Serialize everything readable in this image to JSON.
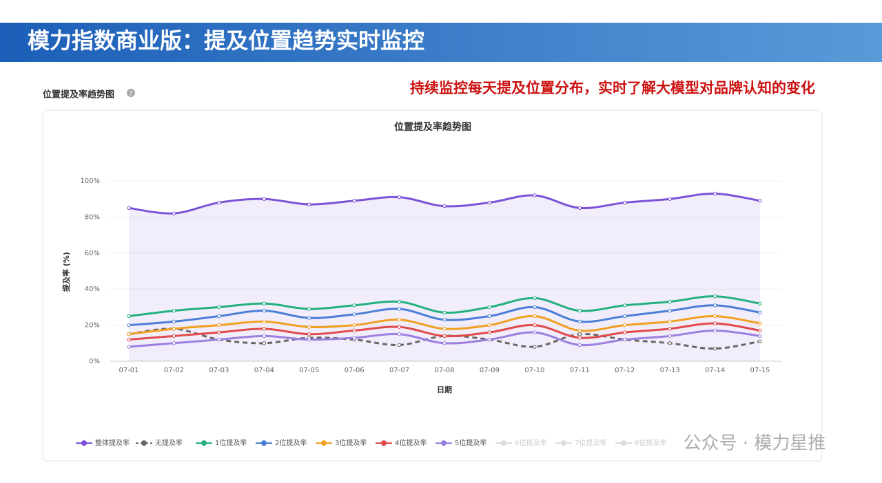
{
  "header": {
    "title": "模力指数商业版：提及位置趋势实时监控",
    "section_label": "位置提及率趋势图",
    "note": "持续监控每天提及位置分布，实时了解大模型对品牌认知的变化",
    "watermark": "公众号 · 模力星推"
  },
  "chart_data": {
    "type": "line",
    "title": "位置提及率趋势图",
    "x_label": "日期",
    "y_label": "提及率 (%)",
    "categories": [
      "07-01",
      "07-02",
      "07-03",
      "07-04",
      "07-05",
      "07-06",
      "07-07",
      "07-08",
      "07-09",
      "07-10",
      "07-11",
      "07-12",
      "07-13",
      "07-14",
      "07-15"
    ],
    "ylim": [
      0,
      100
    ],
    "yticks": [
      {
        "value": 0,
        "label": "0%"
      },
      {
        "value": 20,
        "label": "20%"
      },
      {
        "value": 40,
        "label": "40%"
      },
      {
        "value": 60,
        "label": "60%"
      },
      {
        "value": 80,
        "label": "80%"
      },
      {
        "value": 100,
        "label": "100%"
      }
    ],
    "grid": true,
    "series": [
      {
        "name": "整体提及率",
        "color": "#7b52d8",
        "area": true,
        "dashed": false,
        "values": [
          85,
          82,
          88,
          90,
          87,
          89,
          91,
          86,
          88,
          92,
          85,
          88,
          90,
          93,
          89
        ]
      },
      {
        "name": "无提及率",
        "color": "#666666",
        "dashed": true,
        "values": [
          15,
          18,
          12,
          10,
          13,
          12,
          9,
          14,
          12,
          8,
          15,
          12,
          10,
          7,
          11
        ]
      },
      {
        "name": "1位提及率",
        "color": "#22b07d",
        "values": [
          25,
          28,
          30,
          32,
          29,
          31,
          33,
          27,
          30,
          35,
          28,
          31,
          33,
          36,
          32
        ]
      },
      {
        "name": "2位提及率",
        "color": "#4a7fd6",
        "values": [
          20,
          22,
          25,
          28,
          24,
          26,
          29,
          23,
          25,
          30,
          22,
          25,
          28,
          31,
          27
        ]
      },
      {
        "name": "3位提及率",
        "color": "#f0a020",
        "values": [
          15,
          18,
          20,
          22,
          19,
          20,
          23,
          18,
          20,
          25,
          17,
          20,
          22,
          25,
          21
        ]
      },
      {
        "name": "4位提及率",
        "color": "#e04a4a",
        "values": [
          12,
          14,
          16,
          18,
          15,
          17,
          19,
          14,
          16,
          20,
          13,
          16,
          18,
          21,
          17
        ]
      },
      {
        "name": "5位提及率",
        "color": "#9b7fe0",
        "values": [
          8,
          10,
          12,
          14,
          12,
          13,
          15,
          10,
          12,
          16,
          9,
          12,
          14,
          17,
          14
        ]
      }
    ],
    "hidden_series": [
      "6位提及率",
      "7位提及率",
      "8位提及率"
    ]
  }
}
